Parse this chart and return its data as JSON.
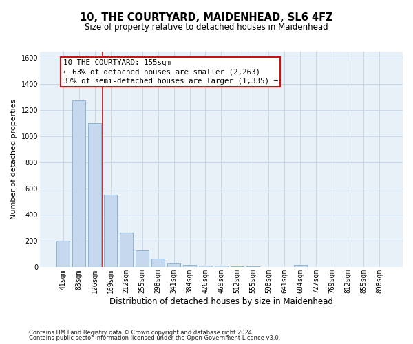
{
  "title": "10, THE COURTYARD, MAIDENHEAD, SL6 4FZ",
  "subtitle": "Size of property relative to detached houses in Maidenhead",
  "xlabel": "Distribution of detached houses by size in Maidenhead",
  "ylabel": "Number of detached properties",
  "categories": [
    "41sqm",
    "83sqm",
    "126sqm",
    "169sqm",
    "212sqm",
    "255sqm",
    "298sqm",
    "341sqm",
    "384sqm",
    "426sqm",
    "469sqm",
    "512sqm",
    "555sqm",
    "598sqm",
    "641sqm",
    "684sqm",
    "727sqm",
    "769sqm",
    "812sqm",
    "855sqm",
    "898sqm"
  ],
  "values": [
    200,
    1275,
    1100,
    555,
    265,
    130,
    65,
    35,
    20,
    15,
    12,
    8,
    5,
    3,
    2,
    20,
    2,
    0,
    0,
    0,
    0
  ],
  "bar_color": "#c5d8ee",
  "bar_edge_color": "#8ab4d8",
  "grid_color": "#c8d8e8",
  "background_color": "#e8f0f8",
  "plot_bg_color": "#e8f0f8",
  "vline_color": "#bb1111",
  "vline_x": 2.5,
  "annotation_text_line1": "10 THE COURTYARD: 155sqm",
  "annotation_text_line2": "← 63% of detached houses are smaller (2,263)",
  "annotation_text_line3": "37% of semi-detached houses are larger (1,335) →",
  "annotation_box_color": "#ffffff",
  "annotation_box_edge_color": "#cc1111",
  "ylim": [
    0,
    1650
  ],
  "yticks": [
    0,
    200,
    400,
    600,
    800,
    1000,
    1200,
    1400,
    1600
  ],
  "footer_line1": "Contains HM Land Registry data © Crown copyright and database right 2024.",
  "footer_line2": "Contains public sector information licensed under the Open Government Licence v3.0.",
  "title_fontsize": 10.5,
  "subtitle_fontsize": 8.5,
  "ylabel_fontsize": 8,
  "xlabel_fontsize": 8.5,
  "tick_fontsize": 7,
  "annotation_fontsize": 7.8,
  "footer_fontsize": 6
}
